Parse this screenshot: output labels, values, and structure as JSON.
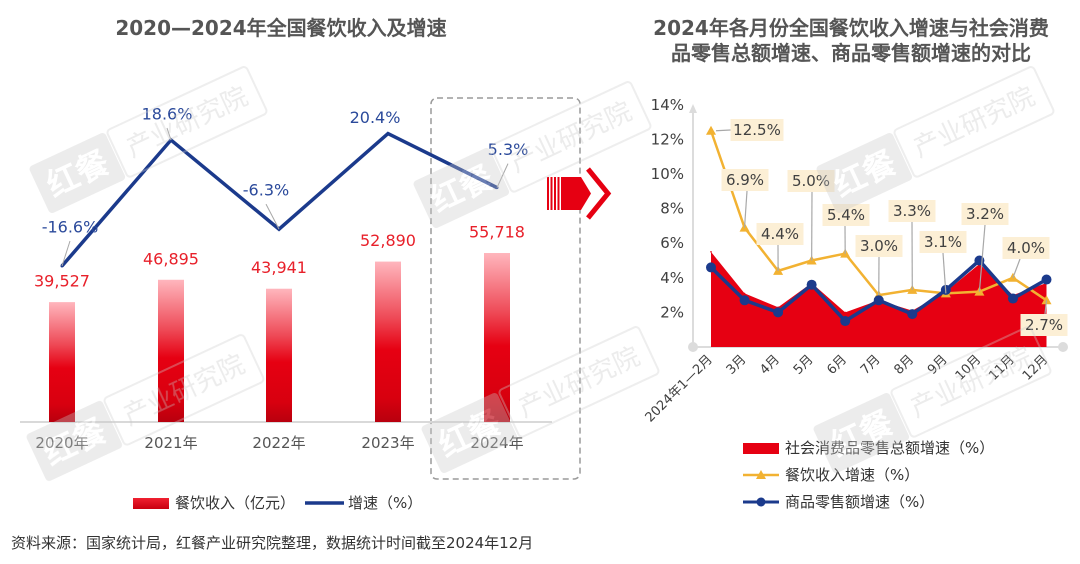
{
  "chart_data": [
    {
      "type": "bar+line",
      "title": "2020—2024年全国餐饮收入及增速",
      "categories": [
        "2020年",
        "2021年",
        "2022年",
        "2023年",
        "2024年"
      ],
      "highlighted_category": "2024年",
      "legend": "bottom",
      "series": [
        {
          "name": "餐饮收入（亿元）",
          "type": "bar",
          "values": [
            39527,
            46895,
            43941,
            52890,
            55718
          ],
          "labels": [
            "39,527",
            "46,895",
            "43,941",
            "52,890",
            "55,718"
          ]
        },
        {
          "name": "增速（%）",
          "type": "line",
          "values": [
            -16.6,
            18.6,
            -6.3,
            20.4,
            5.3
          ],
          "labels": [
            "-16.6%",
            "18.6%",
            "-6.3%",
            "20.4%",
            "5.3%"
          ]
        }
      ]
    },
    {
      "type": "area+line",
      "title_lines": [
        "2024年各月份全国餐饮收入增速与社会消费",
        "品零售总额增速、商品零售额增速的对比"
      ],
      "categories": [
        "2024年1—2月",
        "3月",
        "4月",
        "5月",
        "6月",
        "7月",
        "8月",
        "9月",
        "10月",
        "11月",
        "12月"
      ],
      "ylim": [
        0,
        14
      ],
      "yticks": [
        2,
        4,
        6,
        8,
        10,
        12,
        14
      ],
      "ytick_labels": [
        "2%",
        "4%",
        "6%",
        "8%",
        "10%",
        "12%",
        "14%"
      ],
      "legend": "bottom",
      "series": [
        {
          "name": "社会消费品零售总额增速（%）",
          "type": "area",
          "values": [
            5.5,
            3.1,
            2.3,
            3.7,
            2.0,
            2.7,
            2.1,
            3.2,
            4.8,
            3.0,
            3.7
          ]
        },
        {
          "name": "餐饮收入增速（%）",
          "type": "line",
          "marker": "triangle",
          "values": [
            12.5,
            6.9,
            4.4,
            5.0,
            5.4,
            3.0,
            3.3,
            3.1,
            3.2,
            4.0,
            2.7
          ],
          "labels": [
            "12.5%",
            "6.9%",
            "4.4%",
            "5.0%",
            "5.4%",
            "3.0%",
            "3.3%",
            "3.1%",
            "3.2%",
            "4.0%",
            "2.7%"
          ]
        },
        {
          "name": "商品零售额增速（%）",
          "type": "line",
          "marker": "circle",
          "values": [
            4.6,
            2.7,
            2.0,
            3.6,
            1.5,
            2.7,
            1.9,
            3.3,
            5.0,
            2.8,
            3.9
          ]
        }
      ]
    }
  ],
  "source": "资料来源：国家统计局，红餐产业研究院整理，数据统计时间截至2024年12月",
  "watermark": {
    "brand": "红餐",
    "text": "产业研究院"
  },
  "colors": {
    "revenue_bar": "#e60012",
    "growth_line": "#1b3a8c",
    "retail_area": "#e60012",
    "catering_line": "#f2b232",
    "goods_line": "#1b3a8c",
    "value_label": "#e8202a",
    "growth_label": "#2b4a9b",
    "label_box": "#fcefd5",
    "arrow": "#e60012"
  }
}
